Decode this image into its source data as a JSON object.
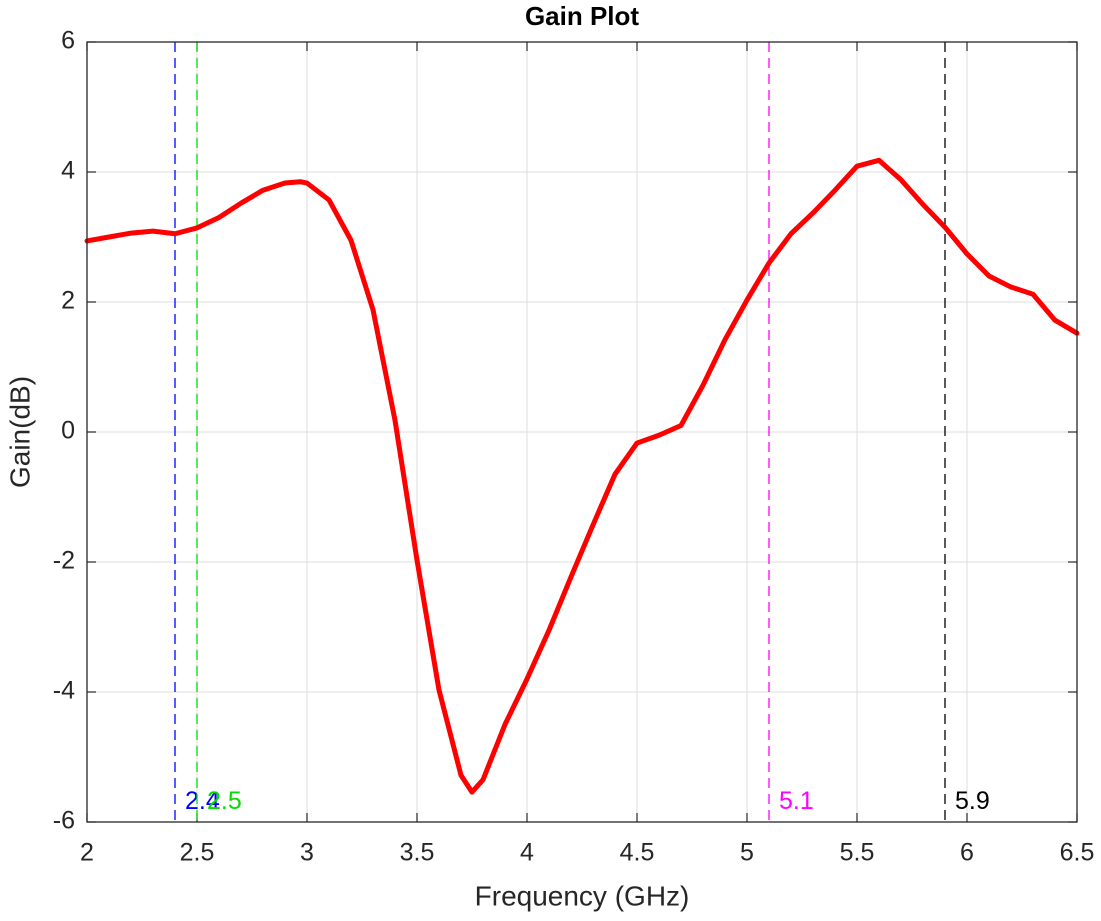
{
  "chart_data": {
    "type": "line",
    "title": "Gain Plot",
    "x_label": "Frequency (GHz)",
    "y_label": "Gain(dB)",
    "x": [
      2.0,
      2.1,
      2.2,
      2.3,
      2.4,
      2.5,
      2.6,
      2.7,
      2.8,
      2.9,
      2.97,
      3.0,
      3.1,
      3.2,
      3.3,
      3.4,
      3.5,
      3.6,
      3.7,
      3.75,
      3.8,
      3.9,
      4.0,
      4.1,
      4.2,
      4.3,
      4.4,
      4.5,
      4.6,
      4.7,
      4.8,
      4.9,
      5.0,
      5.1,
      5.2,
      5.3,
      5.4,
      5.5,
      5.6,
      5.7,
      5.8,
      5.9,
      6.0,
      6.1,
      6.2,
      6.3,
      6.4,
      6.5
    ],
    "series": [
      {
        "name": "Gain",
        "color": "#ff0000",
        "values": [
          2.94,
          3.0,
          3.06,
          3.09,
          3.05,
          3.14,
          3.3,
          3.52,
          3.72,
          3.83,
          3.85,
          3.83,
          3.57,
          2.95,
          1.88,
          0.18,
          -1.97,
          -3.97,
          -5.28,
          -5.54,
          -5.35,
          -4.5,
          -3.8,
          -3.05,
          -2.23,
          -1.43,
          -0.65,
          -0.17,
          -0.05,
          0.1,
          0.72,
          1.42,
          2.03,
          2.6,
          3.05,
          3.37,
          3.72,
          4.09,
          4.18,
          3.88,
          3.5,
          3.15,
          2.74,
          2.4,
          2.23,
          2.12,
          1.72,
          1.52
        ]
      }
    ],
    "markers": [
      {
        "x": 2.4,
        "color": "#0000ff"
      },
      {
        "x": 2.5,
        "color": "#00dd00"
      },
      {
        "x": 5.1,
        "color": "#ff00ff"
      },
      {
        "x": 5.9,
        "color": "#000000"
      }
    ],
    "xlim": [
      2,
      6.5
    ],
    "xticks": [
      2,
      2.5,
      3,
      3.5,
      4,
      4.5,
      5,
      5.5,
      6,
      6.5
    ],
    "ylim": [
      -6,
      6
    ],
    "yticks": [
      -6,
      -4,
      -2,
      0,
      2,
      4,
      6
    ],
    "grid": true
  }
}
